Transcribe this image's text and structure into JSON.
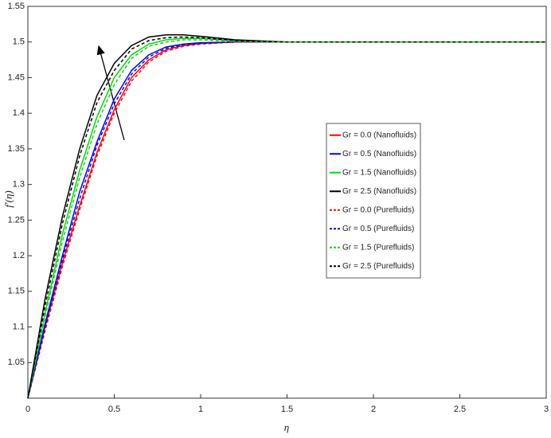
{
  "chart_data": {
    "type": "line",
    "x_label": "η",
    "y_label": "f′(η)",
    "x": [
      0,
      0.1,
      0.2,
      0.3,
      0.4,
      0.5,
      0.6,
      0.7,
      0.8,
      0.9,
      1.0,
      1.2,
      1.5,
      2,
      2.5,
      3
    ],
    "xlim": [
      0,
      3
    ],
    "ylim": [
      1,
      1.55
    ],
    "xticks": [
      0,
      0.5,
      1,
      1.5,
      2,
      2.5,
      3
    ],
    "yticks": [
      1.05,
      1.1,
      1.15,
      1.2,
      1.25,
      1.3,
      1.35,
      1.4,
      1.45,
      1.5,
      1.55
    ],
    "legend": "right",
    "series": [
      {
        "name": "Gr = 0.0 (Nanofluids)",
        "color": "#ff0000",
        "linestyle": "solid",
        "values": [
          1.0,
          1.1,
          1.19,
          1.27,
          1.345,
          1.405,
          1.45,
          1.475,
          1.489,
          1.495,
          1.498,
          1.5,
          1.5,
          1.5,
          1.5,
          1.5
        ]
      },
      {
        "name": "Gr = 0.5 (Nanofluids)",
        "color": "#0000ff",
        "linestyle": "solid",
        "values": [
          1.0,
          1.105,
          1.2,
          1.29,
          1.36,
          1.42,
          1.46,
          1.482,
          1.493,
          1.497,
          1.499,
          1.5,
          1.5,
          1.5,
          1.5,
          1.5
        ]
      },
      {
        "name": "Gr = 1.5 (Nanofluids)",
        "color": "#00dd00",
        "linestyle": "solid",
        "values": [
          1.0,
          1.12,
          1.23,
          1.32,
          1.395,
          1.45,
          1.482,
          1.497,
          1.503,
          1.505,
          1.505,
          1.502,
          1.5,
          1.5,
          1.5,
          1.5
        ]
      },
      {
        "name": "Gr = 2.5 (Nanofluids)",
        "color": "#000000",
        "linestyle": "solid",
        "values": [
          1.0,
          1.14,
          1.255,
          1.35,
          1.425,
          1.47,
          1.495,
          1.507,
          1.51,
          1.51,
          1.508,
          1.503,
          1.5,
          1.5,
          1.5,
          1.5
        ]
      },
      {
        "name": "Gr = 0.0 (Purefluids)",
        "color": "#ff0000",
        "linestyle": "dashed",
        "values": [
          1.0,
          1.095,
          1.185,
          1.265,
          1.34,
          1.4,
          1.445,
          1.472,
          1.487,
          1.494,
          1.497,
          1.5,
          1.5,
          1.5,
          1.5,
          1.5
        ]
      },
      {
        "name": "Gr = 0.5 (Purefluids)",
        "color": "#0000ff",
        "linestyle": "dashed",
        "values": [
          1.0,
          1.1,
          1.195,
          1.28,
          1.355,
          1.413,
          1.455,
          1.479,
          1.491,
          1.496,
          1.498,
          1.5,
          1.5,
          1.5,
          1.5,
          1.5
        ]
      },
      {
        "name": "Gr = 1.5 (Purefluids)",
        "color": "#00dd00",
        "linestyle": "dashed",
        "values": [
          1.0,
          1.115,
          1.22,
          1.31,
          1.385,
          1.44,
          1.477,
          1.494,
          1.5,
          1.503,
          1.503,
          1.501,
          1.5,
          1.5,
          1.5,
          1.5
        ]
      },
      {
        "name": "Gr = 2.5 (Purefluids)",
        "color": "#000000",
        "linestyle": "dashed",
        "values": [
          1.0,
          1.13,
          1.245,
          1.34,
          1.415,
          1.46,
          1.49,
          1.502,
          1.506,
          1.507,
          1.506,
          1.502,
          1.5,
          1.5,
          1.5,
          1.5
        ]
      }
    ]
  }
}
